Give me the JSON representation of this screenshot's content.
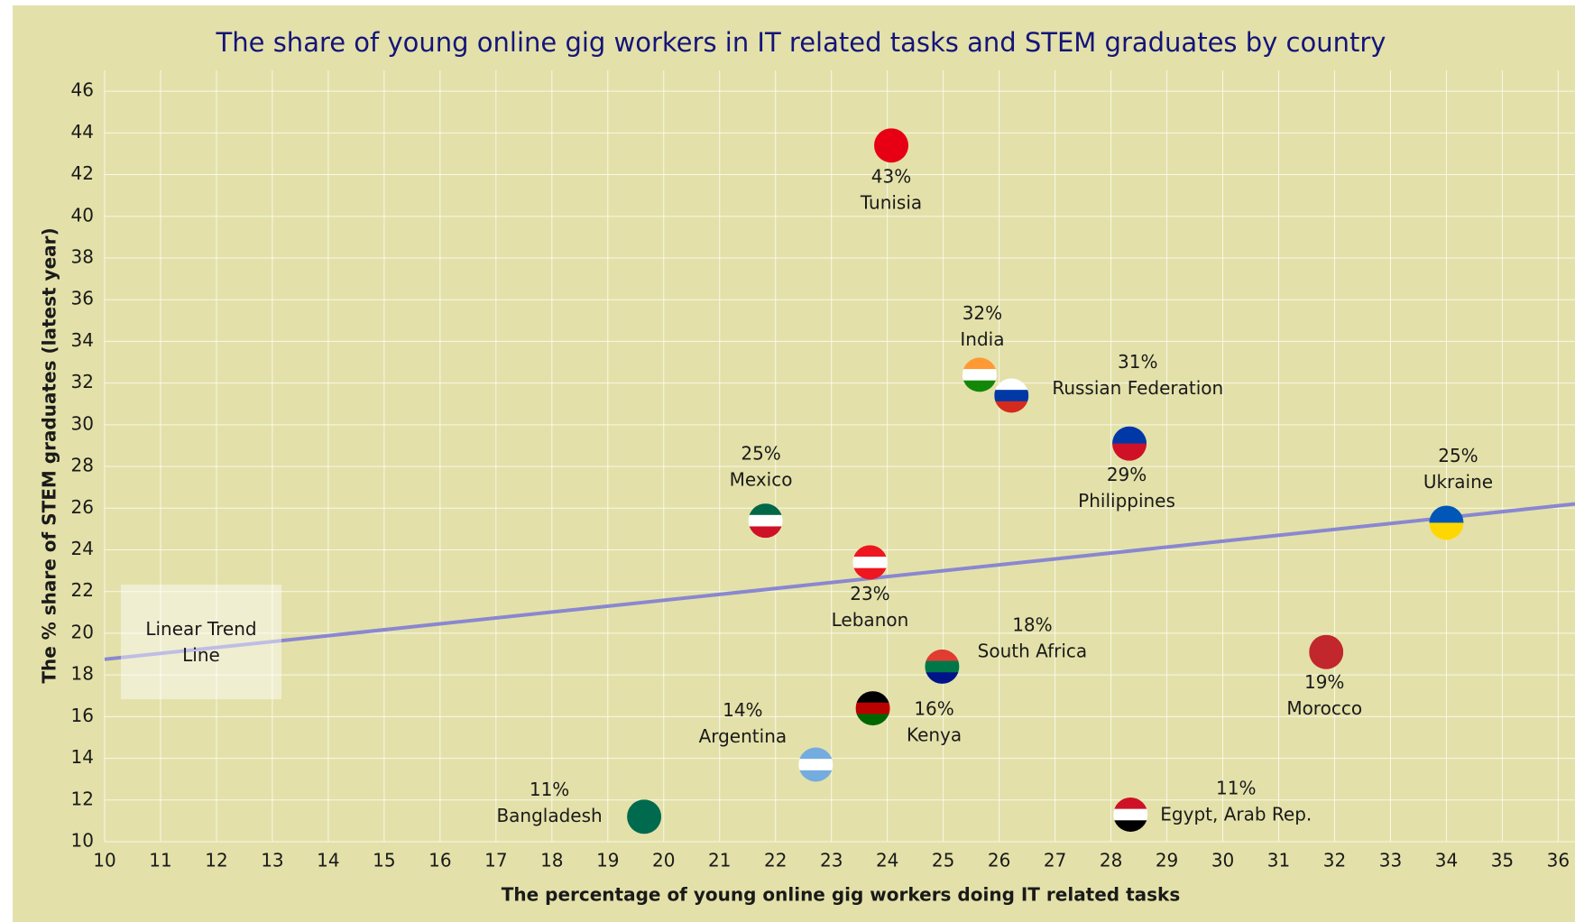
{
  "chart_data": {
    "type": "scatter",
    "title": "The share of young online gig workers in IT related tasks and STEM graduates by country",
    "x_label": "The percentage of young online gig workers doing IT related tasks",
    "y_label": "The % share of STEM graduates (latest year)",
    "names": [
      "Tunisia",
      "India",
      "Russian Federation",
      "Philippines",
      "Ukraine",
      "Mexico",
      "Lebanon",
      "South Africa",
      "Morocco",
      "Kenya",
      "Argentina",
      "Bangladesh",
      "Egypt, Arab Rep."
    ],
    "x": [
      24.07,
      25.65,
      26.22,
      28.33,
      34.0,
      21.82,
      23.69,
      24.98,
      31.85,
      23.74,
      22.72,
      19.65,
      28.35
    ],
    "y": [
      43.4,
      32.4,
      31.4,
      29.1,
      25.3,
      25.4,
      23.4,
      18.4,
      19.1,
      16.4,
      13.7,
      11.2,
      11.3
    ],
    "value_labels": [
      "43%",
      "32%",
      "31%",
      "29%",
      "25%",
      "25%",
      "23%",
      "18%",
      "19%",
      "16%",
      "14%",
      "11%",
      "11%"
    ],
    "flag_colors": [
      [
        "#e70013"
      ],
      [
        "#ff9933",
        "#ffffff",
        "#138808"
      ],
      [
        "#ffffff",
        "#0039a6",
        "#d52b1e"
      ],
      [
        "#0038a8",
        "#ce1126"
      ],
      [
        "#0057b7",
        "#ffd700"
      ],
      [
        "#006847",
        "#ffffff",
        "#ce1126"
      ],
      [
        "#ee161f",
        "#ffffff",
        "#ee161f"
      ],
      [
        "#e03c31",
        "#007749",
        "#001489"
      ],
      [
        "#c1272d"
      ],
      [
        "#000000",
        "#bb0000",
        "#006600"
      ],
      [
        "#74acdf",
        "#ffffff",
        "#74acdf"
      ],
      [
        "#006a4e"
      ],
      [
        "#ce1126",
        "#ffffff",
        "#000000"
      ]
    ],
    "trend_line": {
      "label": "Linear Trend Line",
      "x": [
        10,
        36.3
      ],
      "y": [
        18.75,
        26.2
      ],
      "color": "#8a87d0"
    },
    "xlim": [
      10,
      36.3
    ],
    "ylim": [
      10,
      47
    ],
    "xticks": [
      10,
      11,
      12,
      13,
      14,
      15,
      16,
      17,
      18,
      19,
      20,
      21,
      22,
      23,
      24,
      25,
      26,
      27,
      28,
      29,
      30,
      31,
      32,
      33,
      34,
      35,
      36
    ],
    "yticks": [
      10,
      12,
      14,
      16,
      18,
      20,
      22,
      24,
      26,
      28,
      30,
      32,
      34,
      36,
      38,
      40,
      42,
      44,
      46
    ],
    "grid": true
  }
}
